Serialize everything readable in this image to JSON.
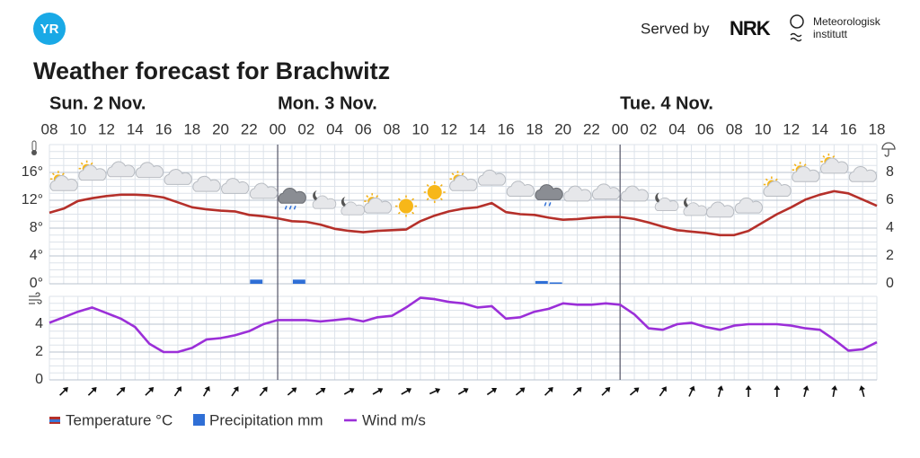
{
  "header": {
    "logo": "YR",
    "served_by": "Served by",
    "nrk_logo": "NRK",
    "met_line1": "Meteorologisk",
    "met_line2": "institutt",
    "title": "Weather forecast for Brachwitz"
  },
  "chart_data": [
    {
      "type": "line",
      "days": [
        "Sun. 2 Nov.",
        "Mon. 3 Nov.",
        "Tue. 4 Nov."
      ],
      "categories": [
        "08",
        null,
        "10",
        null,
        "12",
        null,
        "14",
        null,
        "16",
        null,
        "18",
        null,
        "20",
        null,
        "22",
        null,
        "00",
        null,
        "02",
        null,
        "04",
        null,
        "06",
        null,
        "08",
        null,
        "10",
        null,
        "12",
        null,
        "14",
        null,
        "16",
        null,
        "18",
        null,
        "20",
        null,
        "22",
        null,
        "00",
        null,
        "02",
        null,
        "04",
        null,
        "06",
        null,
        "08",
        null,
        "10",
        null,
        "12",
        null,
        "14",
        null,
        "16",
        null,
        "18"
      ],
      "series": [
        {
          "name": "Temperature °C",
          "color": "#b5302a",
          "values": [
            10.2,
            10.8,
            11.9,
            12.3,
            12.6,
            12.8,
            12.8,
            12.7,
            12.4,
            11.7,
            11.0,
            10.7,
            10.5,
            10.4,
            9.9,
            9.7,
            9.4,
            9.0,
            8.9,
            8.5,
            7.9,
            7.6,
            7.4,
            7.6,
            7.7,
            7.8,
            9.0,
            9.8,
            10.4,
            10.8,
            11.0,
            11.6,
            10.3,
            10.0,
            9.9,
            9.5,
            9.2,
            9.3,
            9.5,
            9.6,
            9.6,
            9.3,
            8.8,
            8.2,
            7.7,
            7.5,
            7.3,
            7.0,
            7.0,
            7.6,
            8.8,
            10.0,
            11.0,
            12.1,
            12.8,
            13.3,
            13.0,
            12.1,
            11.2
          ]
        },
        {
          "name": "Precipitation mm",
          "color": "#2f6fd6",
          "type": "bar",
          "axis": "y2",
          "values": [
            0,
            0,
            0,
            0,
            0,
            0,
            0,
            0,
            0,
            0,
            0,
            0,
            0,
            0,
            0.3,
            0,
            0,
            0.3,
            0,
            0,
            0,
            0,
            0,
            0,
            0,
            0,
            0,
            0,
            0,
            0,
            0,
            0,
            0,
            0,
            0.2,
            0.1,
            0,
            0,
            0,
            0,
            0,
            0,
            0,
            0,
            0,
            0,
            0,
            0,
            0,
            0,
            0,
            0,
            0,
            0,
            0,
            0,
            0,
            0,
            0
          ]
        }
      ],
      "ylim": [
        0,
        20
      ],
      "yticks": [
        {
          "value": 0,
          "label": "0°"
        },
        {
          "value": 4,
          "label": "4°"
        },
        {
          "value": 8,
          "label": "8°"
        },
        {
          "value": 12,
          "label": "12°"
        },
        {
          "value": 16,
          "label": "16°"
        }
      ],
      "y2lim": [
        0,
        10
      ],
      "y2ticks": [
        0,
        2,
        4,
        6,
        8
      ],
      "grid": true,
      "weather_symbols": [
        "partsun",
        "partsun",
        "cloud",
        "cloud",
        "cloud",
        "cloud",
        "cloud",
        "cloud",
        "rain",
        "partmoon",
        "partmoon",
        "partsun",
        "sun",
        "sun",
        "partsun",
        "cloud",
        "cloud",
        "lightrain",
        "cloud",
        "cloud",
        "cloud",
        "partmoon",
        "partmoon",
        "cloud",
        "cloud",
        "partsun",
        "partsun",
        "partsun",
        "cloud"
      ]
    },
    {
      "type": "line",
      "series": [
        {
          "name": "Wind m/s",
          "color": "#9b2fd8",
          "values": [
            4.1,
            4.5,
            4.9,
            5.2,
            4.8,
            4.4,
            3.8,
            2.6,
            2.0,
            2.0,
            2.3,
            2.9,
            3.0,
            3.2,
            3.5,
            4.0,
            4.3,
            4.3,
            4.3,
            4.2,
            4.3,
            4.4,
            4.2,
            4.5,
            4.6,
            5.2,
            5.9,
            5.8,
            5.6,
            5.5,
            5.2,
            5.3,
            4.4,
            4.5,
            4.9,
            5.1,
            5.5,
            5.4,
            5.4,
            5.5,
            5.4,
            4.7,
            3.7,
            3.6,
            4.0,
            4.1,
            3.8,
            3.6,
            3.9,
            4.0,
            4.0,
            4.0,
            3.9,
            3.7,
            3.6,
            2.9,
            2.1,
            2.2,
            2.7
          ]
        }
      ],
      "ylim": [
        0,
        6
      ],
      "yticks": [
        0,
        2,
        4
      ],
      "grid": true,
      "wind_direction": [
        45,
        45,
        45,
        45,
        35,
        30,
        35,
        40,
        50,
        55,
        60,
        60,
        60,
        65,
        60,
        55,
        50,
        45,
        45,
        45,
        50,
        35,
        25,
        15,
        0,
        0,
        15,
        10,
        345
      ]
    }
  ]
}
